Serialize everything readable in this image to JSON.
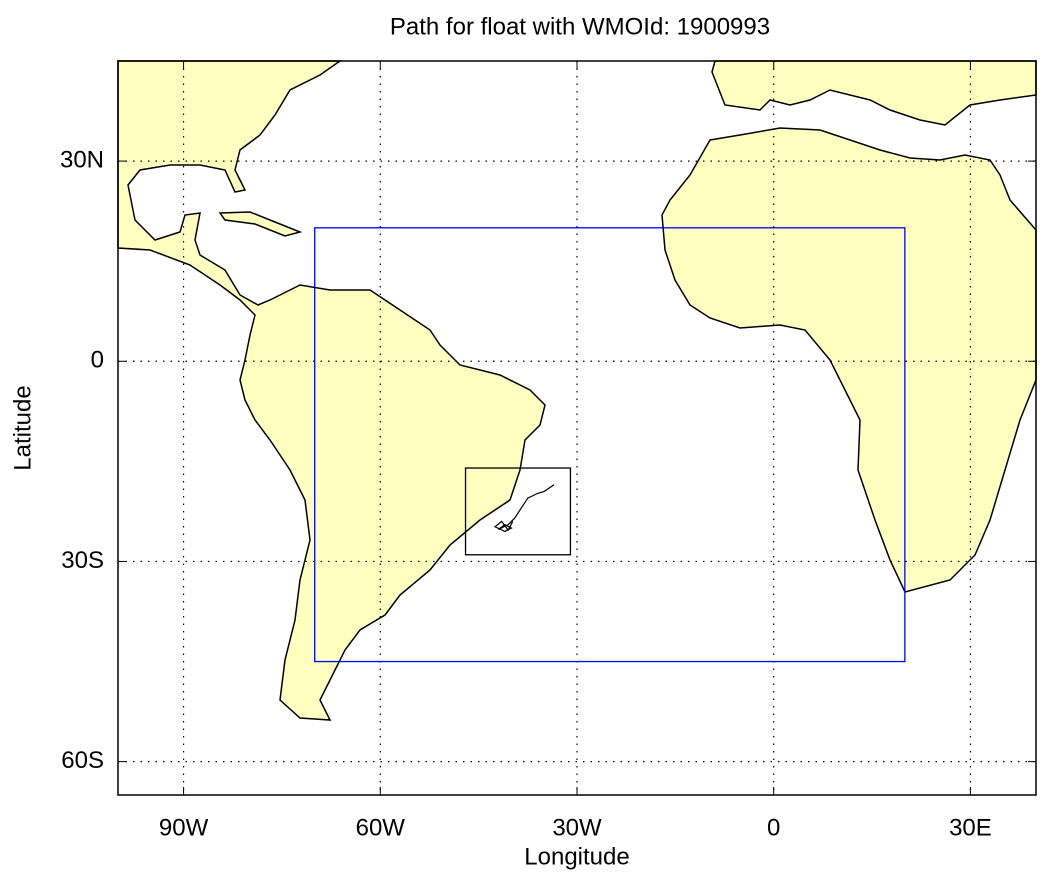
{
  "chart_data": {
    "type": "map",
    "title": "Path for float with WMOId: 1900993",
    "xlabel": "Longitude",
    "ylabel": "Latitude",
    "xlim": [
      -100,
      40
    ],
    "ylim": [
      -65,
      45
    ],
    "xticks": [
      {
        "value": -90,
        "label": "90W"
      },
      {
        "value": -60,
        "label": "60W"
      },
      {
        "value": -30,
        "label": "30W"
      },
      0,
      {
        "value": 30,
        "label": "30E"
      }
    ],
    "yticks": [
      {
        "value": 30,
        "label": "30N"
      },
      0,
      {
        "value": -30,
        "label": "30S"
      },
      {
        "value": -60,
        "label": "60S"
      }
    ],
    "grid": true,
    "regions": [
      {
        "color": "#0000ff",
        "lon": [
          -70,
          20
        ],
        "lat": [
          -45,
          20
        ]
      },
      {
        "color": "#000000",
        "lon": [
          -47,
          -31
        ],
        "lat": [
          -29,
          -16
        ]
      }
    ],
    "track": {
      "color": "#000000",
      "lon": [
        -33.5,
        -35,
        -36,
        -37.5,
        -38.5,
        -39.5,
        -40.5,
        -42,
        -41,
        -40,
        -41,
        -42.5,
        -41.5,
        -40.5,
        -39.8
      ],
      "lat": [
        -18.5,
        -19.5,
        -19.8,
        -20.5,
        -22,
        -23.5,
        -24.5,
        -25.2,
        -24.5,
        -25,
        -25.5,
        -24.8,
        -24,
        -25.3,
        -24
      ]
    }
  }
}
